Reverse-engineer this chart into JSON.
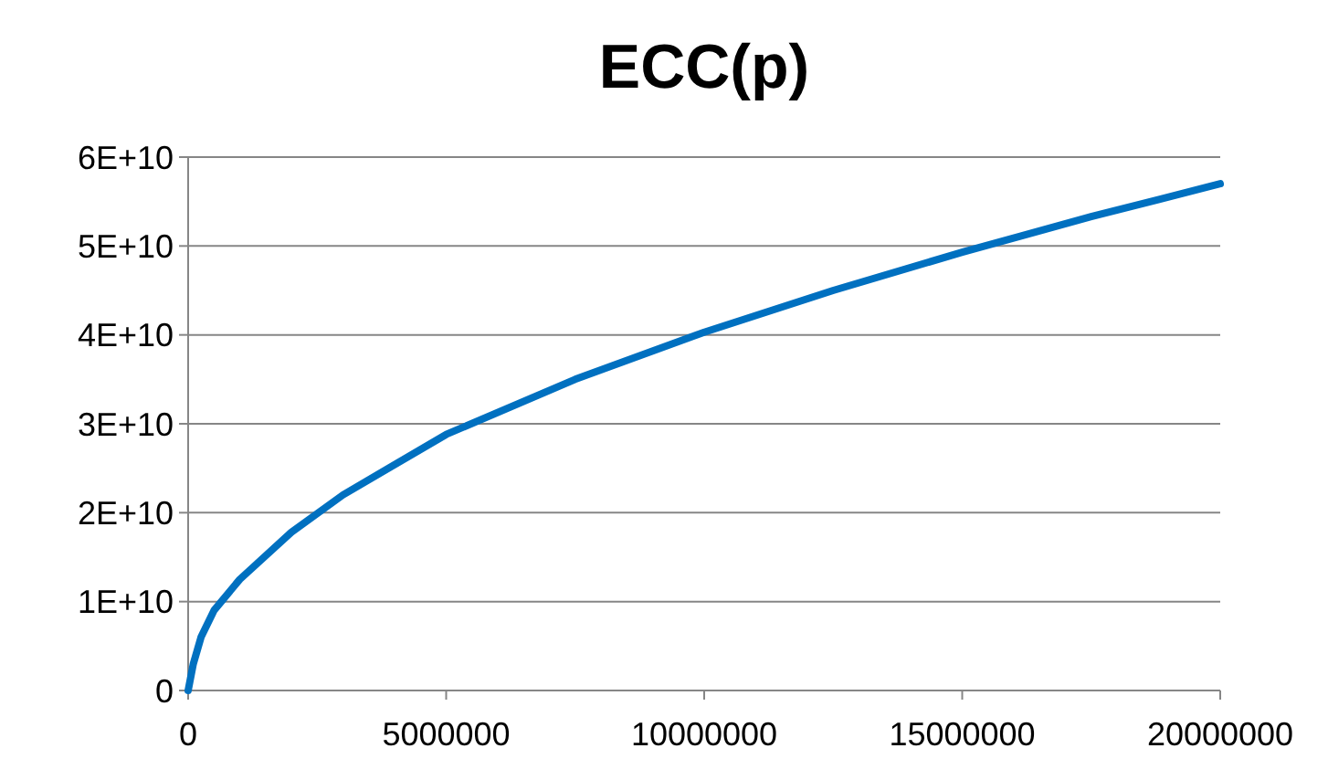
{
  "chart_data": {
    "type": "line",
    "title": "ECC(p)",
    "x": [
      0,
      100000,
      250000,
      500000,
      1000000,
      2000000,
      3000000,
      5000000,
      7500000,
      10000000,
      12500000,
      15000000,
      17500000,
      20000000
    ],
    "series": [
      {
        "color": "#0070c0",
        "values": [
          0,
          3000000000,
          6000000000,
          9000000000,
          12500000000,
          17800000000,
          22000000000,
          28800000000,
          35000000000,
          40300000000,
          45000000000,
          49300000000,
          53300000000,
          57000000000
        ]
      }
    ],
    "xlim": [
      0,
      20000000
    ],
    "xticks": [
      0,
      5000000,
      10000000,
      15000000,
      20000000
    ],
    "ylim": [
      0,
      60000000000
    ],
    "yticks": [
      0,
      {
        "value": 10000000000,
        "label": "1E+10"
      },
      {
        "value": 20000000000,
        "label": "2E+10"
      },
      {
        "value": 30000000000,
        "label": "3E+10"
      },
      {
        "value": 40000000000,
        "label": "4E+10"
      },
      {
        "value": 50000000000,
        "label": "5E+10"
      },
      {
        "value": 60000000000,
        "label": "6E+10"
      }
    ],
    "grid": "y",
    "marker": "none",
    "line_style": "solid"
  }
}
